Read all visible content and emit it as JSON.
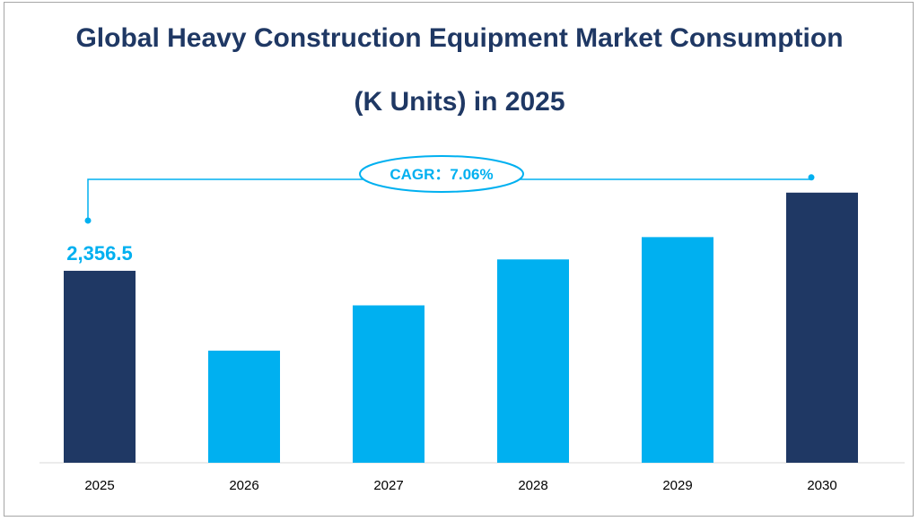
{
  "title_line1": "Global Heavy Construction Equipment Market Consumption",
  "title_line2": "(K Units)  in 2025",
  "colors": {
    "highlight": "#1f3864",
    "regular": "#00b0f0",
    "title": "#1f3864",
    "accent": "#00b0f0"
  },
  "chart_data": {
    "type": "bar",
    "categories": [
      "2025",
      "2026",
      "2027",
      "2028",
      "2029",
      "2030"
    ],
    "values": [
      2356.5,
      1376,
      1932,
      2496,
      2770,
      3316
    ],
    "highlighted": [
      "2025",
      "2030"
    ],
    "data_labels": [
      {
        "category": "2025",
        "text": "2,356.5"
      }
    ],
    "annotation": "CAGR：7.06%",
    "ylim": [
      0,
      3600
    ],
    "grid": false,
    "legend": "none"
  }
}
